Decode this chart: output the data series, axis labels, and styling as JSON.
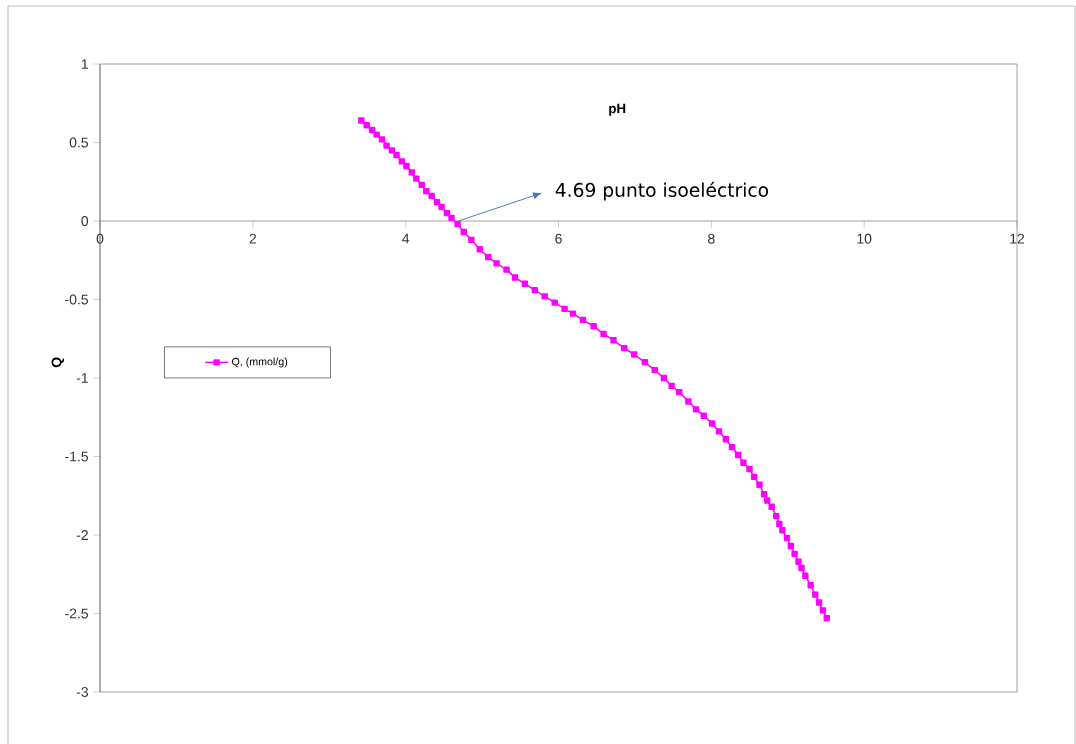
{
  "chart_data": {
    "type": "line",
    "xlabel": "pH",
    "ylabel": "Q",
    "annotations": [
      {
        "text": "4.69 punto isoeléctrico",
        "x": 4.69,
        "y": 0
      }
    ],
    "x": [
      3.42,
      3.49,
      3.56,
      3.62,
      3.69,
      3.75,
      3.82,
      3.88,
      3.95,
      4.01,
      4.08,
      4.14,
      4.21,
      4.27,
      4.34,
      4.41,
      4.47,
      4.54,
      4.6,
      4.68,
      4.76,
      4.86,
      4.97,
      5.08,
      5.19,
      5.32,
      5.43,
      5.56,
      5.69,
      5.82,
      5.95,
      6.08,
      6.19,
      6.32,
      6.46,
      6.59,
      6.72,
      6.86,
      6.99,
      7.13,
      7.26,
      7.38,
      7.48,
      7.58,
      7.7,
      7.8,
      7.9,
      8.01,
      8.1,
      8.19,
      8.27,
      8.35,
      8.42,
      8.5,
      8.56,
      8.63,
      8.69,
      8.73,
      8.79,
      8.85,
      8.89,
      8.93,
      8.99,
      9.04,
      9.09,
      9.14,
      9.18,
      9.23,
      9.3,
      9.36,
      9.41,
      9.46,
      9.51
    ],
    "series": [
      {
        "name": "Q, (mmol/g)",
        "color": "#ff00ff",
        "values": [
          0.64,
          0.61,
          0.58,
          0.55,
          0.52,
          0.48,
          0.45,
          0.42,
          0.38,
          0.35,
          0.31,
          0.27,
          0.23,
          0.19,
          0.16,
          0.12,
          0.09,
          0.05,
          0.02,
          -0.02,
          -0.07,
          -0.12,
          -0.18,
          -0.23,
          -0.27,
          -0.31,
          -0.36,
          -0.4,
          -0.44,
          -0.48,
          -0.52,
          -0.56,
          -0.59,
          -0.63,
          -0.67,
          -0.72,
          -0.76,
          -0.81,
          -0.85,
          -0.9,
          -0.95,
          -1.0,
          -1.05,
          -1.09,
          -1.15,
          -1.2,
          -1.24,
          -1.29,
          -1.34,
          -1.39,
          -1.44,
          -1.49,
          -1.54,
          -1.58,
          -1.63,
          -1.68,
          -1.74,
          -1.78,
          -1.82,
          -1.88,
          -1.93,
          -1.97,
          -2.02,
          -2.07,
          -2.12,
          -2.17,
          -2.21,
          -2.26,
          -2.32,
          -2.38,
          -2.43,
          -2.48,
          -2.53
        ]
      }
    ],
    "xlim": [
      0,
      12
    ],
    "xticks": [
      0,
      2,
      4,
      6,
      8,
      10,
      12
    ],
    "ylim": [
      -3,
      1
    ],
    "yticks": [
      -3,
      -2.5,
      -2,
      -1.5,
      -1,
      -0.5,
      0,
      0.5,
      1
    ],
    "legend": "left",
    "marker": "square",
    "line_style": "solid"
  }
}
